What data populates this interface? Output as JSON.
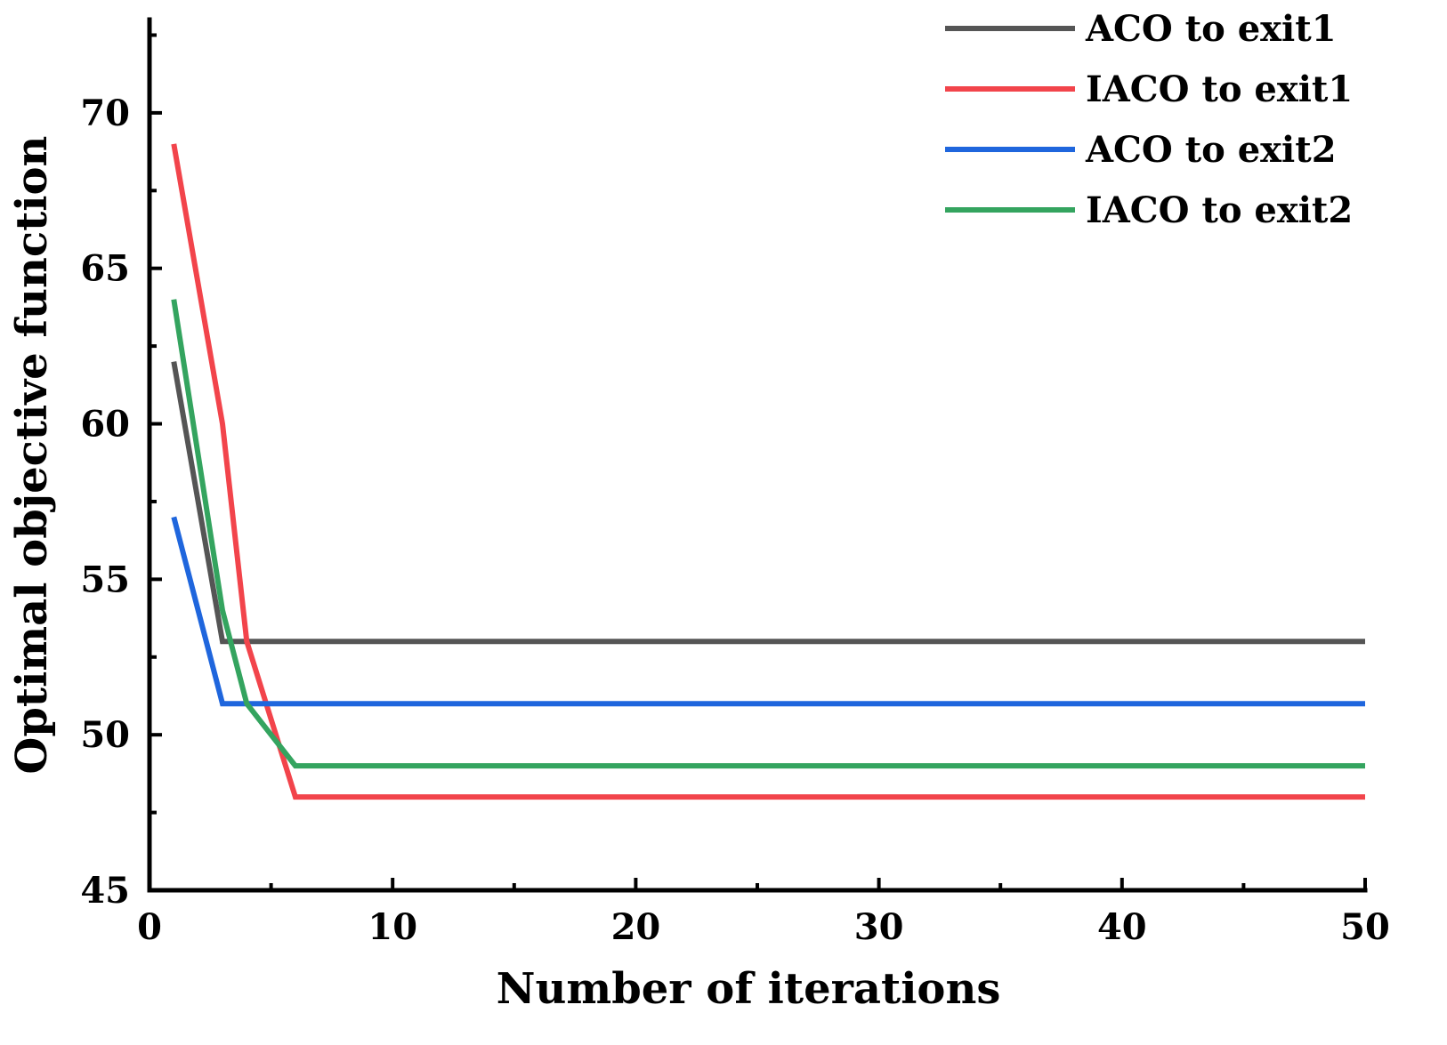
{
  "chart_data": {
    "type": "line",
    "title": "",
    "xlabel": "Number of iterations",
    "ylabel": "Optimal objective function",
    "xlim": [
      0,
      50
    ],
    "ylim": [
      45,
      73
    ],
    "xticks": [
      0,
      10,
      20,
      30,
      40,
      50
    ],
    "yticks": [
      45,
      50,
      55,
      60,
      65,
      70
    ],
    "x_minor_ticks": [
      5,
      15,
      25,
      35,
      45
    ],
    "y_minor_ticks": [
      47.5,
      52.5,
      57.5,
      62.5,
      67.5,
      72.5
    ],
    "grid": false,
    "legend_position": "top-right",
    "series": [
      {
        "name": "ACO to exit1",
        "color": "#555555",
        "points": [
          [
            1,
            62
          ],
          [
            3,
            53
          ],
          [
            50,
            53
          ]
        ]
      },
      {
        "name": "IACO to exit1",
        "color": "#f2444b",
        "points": [
          [
            1,
            69
          ],
          [
            3,
            60
          ],
          [
            4,
            53
          ],
          [
            6,
            48
          ],
          [
            50,
            48
          ]
        ]
      },
      {
        "name": "ACO to exit2",
        "color": "#1f66dd",
        "points": [
          [
            1,
            57
          ],
          [
            3,
            51
          ],
          [
            50,
            51
          ]
        ]
      },
      {
        "name": "IACO to exit2",
        "color": "#34a45f",
        "points": [
          [
            1,
            64
          ],
          [
            3,
            54
          ],
          [
            4,
            51
          ],
          [
            6,
            49
          ],
          [
            50,
            49
          ]
        ]
      }
    ]
  }
}
